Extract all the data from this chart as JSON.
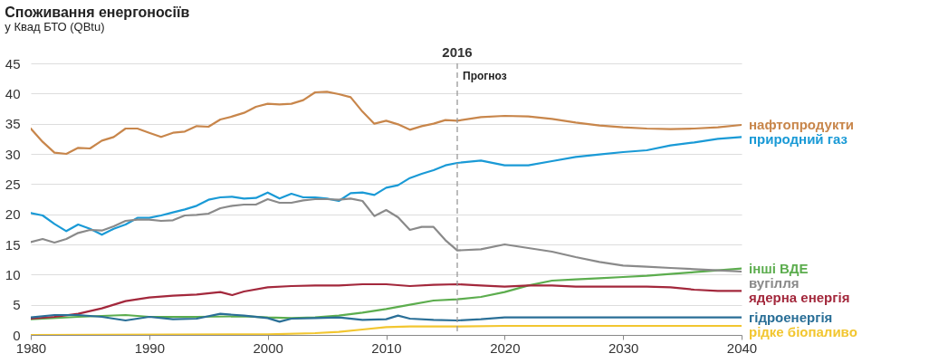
{
  "chart_data": {
    "type": "line",
    "title": "Споживання енергоносіїв",
    "subtitle": "у Квад БТО (QBtu)",
    "xlim": [
      1980,
      2040
    ],
    "xticks": [
      1980,
      1990,
      2000,
      2010,
      2020,
      2030,
      2040
    ],
    "ylim": [
      0,
      45
    ],
    "yticks": [
      0,
      5,
      10,
      15,
      20,
      25,
      30,
      35,
      40,
      45
    ],
    "grid": "y",
    "legend": false,
    "marker": "none",
    "line_style": "solid",
    "ref_lines": [
      {
        "axis": "x",
        "value": 2016,
        "label": "2016",
        "color": "#999999",
        "line_style": "dashed"
      }
    ],
    "annotations": [
      "Прогноз"
    ],
    "series": [
      {
        "name": "нафтопродукти",
        "color": "#c8864b",
        "x": [
          1980,
          1981,
          1982,
          1983,
          1984,
          1985,
          1986,
          1987,
          1988,
          1989,
          1990,
          1991,
          1992,
          1993,
          1994,
          1995,
          1996,
          1997,
          1998,
          1999,
          2000,
          2001,
          2002,
          2003,
          2004,
          2005,
          2006,
          2007,
          2008,
          2009,
          2010,
          2011,
          2012,
          2013,
          2014,
          2015,
          2016,
          2018,
          2020,
          2022,
          2024,
          2026,
          2028,
          2030,
          2032,
          2034,
          2036,
          2038,
          2040
        ],
        "values": [
          34.2,
          32,
          30.2,
          30.0,
          31,
          30.9,
          32.2,
          32.8,
          34.2,
          34.2,
          33.5,
          32.8,
          33.5,
          33.7,
          34.6,
          34.5,
          35.7,
          36.2,
          36.8,
          37.8,
          38.3,
          38.2,
          38.3,
          38.9,
          40.2,
          40.3,
          39.9,
          39.4,
          37.0,
          35.0,
          35.5,
          34.9,
          34.0,
          34.6,
          35.0,
          35.6,
          35.5,
          36.1,
          36.3,
          36.2,
          35.8,
          35.2,
          34.7,
          34.4,
          34.2,
          34.1,
          34.2,
          34.4,
          34.8
        ]
      },
      {
        "name": "природний газ",
        "color": "#1a9ad6",
        "x": [
          1980,
          1981,
          1982,
          1983,
          1984,
          1985,
          1986,
          1987,
          1988,
          1989,
          1990,
          1991,
          1992,
          1993,
          1994,
          1995,
          1996,
          1997,
          1998,
          1999,
          2000,
          2001,
          2002,
          2003,
          2004,
          2005,
          2006,
          2007,
          2008,
          2009,
          2010,
          2011,
          2012,
          2013,
          2014,
          2015,
          2016,
          2018,
          2020,
          2022,
          2024,
          2026,
          2028,
          2030,
          2032,
          2034,
          2036,
          2038,
          2040
        ],
        "values": [
          20.2,
          19.8,
          18.4,
          17.2,
          18.3,
          17.6,
          16.6,
          17.6,
          18.3,
          19.4,
          19.4,
          19.8,
          20.3,
          20.8,
          21.4,
          22.4,
          22.8,
          22.9,
          22.6,
          22.7,
          23.6,
          22.6,
          23.4,
          22.8,
          22.8,
          22.6,
          22.2,
          23.5,
          23.6,
          23.2,
          24.4,
          24.8,
          26.0,
          26.7,
          27.3,
          28.1,
          28.5,
          28.9,
          28.1,
          28.1,
          28.8,
          29.5,
          29.9,
          30.3,
          30.6,
          31.4,
          31.9,
          32.5,
          32.8
        ]
      },
      {
        "name": "інші ВДЕ",
        "color": "#5cad4e",
        "x": [
          1980,
          1984,
          1988,
          1990,
          1994,
          1998,
          2000,
          2002,
          2004,
          2006,
          2008,
          2010,
          2012,
          2014,
          2016,
          2018,
          2020,
          2022,
          2024,
          2026,
          2028,
          2030,
          2032,
          2034,
          2036,
          2038,
          2040
        ],
        "values": [
          2.6,
          3.0,
          3.3,
          3.0,
          3.0,
          3.1,
          2.9,
          2.8,
          2.9,
          3.2,
          3.7,
          4.3,
          5.0,
          5.7,
          5.9,
          6.3,
          7.1,
          8.2,
          9.0,
          9.2,
          9.4,
          9.6,
          9.8,
          10.1,
          10.4,
          10.7,
          11.0
        ]
      },
      {
        "name": "вугілля",
        "color": "#8a8a8a",
        "x": [
          1980,
          1981,
          1982,
          1983,
          1984,
          1985,
          1986,
          1987,
          1988,
          1989,
          1990,
          1991,
          1992,
          1993,
          1994,
          1995,
          1996,
          1997,
          1998,
          1999,
          2000,
          2001,
          2002,
          2003,
          2004,
          2005,
          2006,
          2007,
          2008,
          2009,
          2010,
          2011,
          2012,
          2013,
          2014,
          2015,
          2016,
          2018,
          2020,
          2022,
          2024,
          2026,
          2028,
          2030,
          2032,
          2034,
          2036,
          2038,
          2040
        ],
        "values": [
          15.4,
          15.9,
          15.3,
          15.9,
          16.9,
          17.4,
          17.3,
          18.0,
          18.9,
          19.1,
          19.1,
          18.9,
          19.0,
          19.8,
          19.9,
          20.1,
          21.0,
          21.4,
          21.6,
          21.6,
          22.5,
          21.9,
          21.9,
          22.3,
          22.5,
          22.5,
          22.4,
          22.6,
          22.2,
          19.7,
          20.7,
          19.5,
          17.4,
          17.9,
          17.9,
          15.7,
          14.0,
          14.2,
          15.0,
          14.4,
          13.8,
          12.9,
          12.1,
          11.5,
          11.3,
          11.1,
          10.9,
          10.7,
          10.5
        ]
      },
      {
        "name": "ядерна енергія",
        "color": "#a3283c",
        "x": [
          1980,
          1982,
          1984,
          1986,
          1988,
          1990,
          1992,
          1994,
          1996,
          1997,
          1998,
          2000,
          2002,
          2004,
          2006,
          2008,
          2010,
          2012,
          2014,
          2016,
          2018,
          2020,
          2022,
          2024,
          2026,
          2028,
          2030,
          2032,
          2034,
          2036,
          2038,
          2040
        ],
        "values": [
          2.7,
          3.0,
          3.5,
          4.4,
          5.6,
          6.2,
          6.5,
          6.7,
          7.1,
          6.6,
          7.2,
          7.9,
          8.1,
          8.2,
          8.2,
          8.4,
          8.4,
          8.1,
          8.3,
          8.4,
          8.2,
          8.0,
          8.2,
          8.2,
          8.0,
          8.0,
          8.0,
          8.0,
          7.9,
          7.5,
          7.3,
          7.3
        ]
      },
      {
        "name": "гідроенергія",
        "color": "#2a6f97",
        "x": [
          1980,
          1982,
          1984,
          1986,
          1988,
          1990,
          1992,
          1994,
          1996,
          1998,
          2000,
          2001,
          2002,
          2004,
          2006,
          2008,
          2010,
          2011,
          2012,
          2014,
          2016,
          2018,
          2020,
          2024,
          2030,
          2040
        ],
        "values": [
          2.9,
          3.3,
          3.3,
          3.0,
          2.4,
          3.0,
          2.6,
          2.7,
          3.5,
          3.2,
          2.8,
          2.2,
          2.7,
          2.8,
          2.9,
          2.5,
          2.6,
          3.2,
          2.7,
          2.5,
          2.4,
          2.6,
          2.9,
          2.9,
          2.9,
          2.9
        ]
      },
      {
        "name": "рідке біопаливо",
        "color": "#f2c630",
        "x": [
          1980,
          2000,
          2004,
          2006,
          2008,
          2010,
          2012,
          2016,
          2020,
          2030,
          2040
        ],
        "values": [
          0,
          0.1,
          0.3,
          0.5,
          0.9,
          1.3,
          1.4,
          1.4,
          1.5,
          1.5,
          1.5
        ]
      }
    ]
  }
}
